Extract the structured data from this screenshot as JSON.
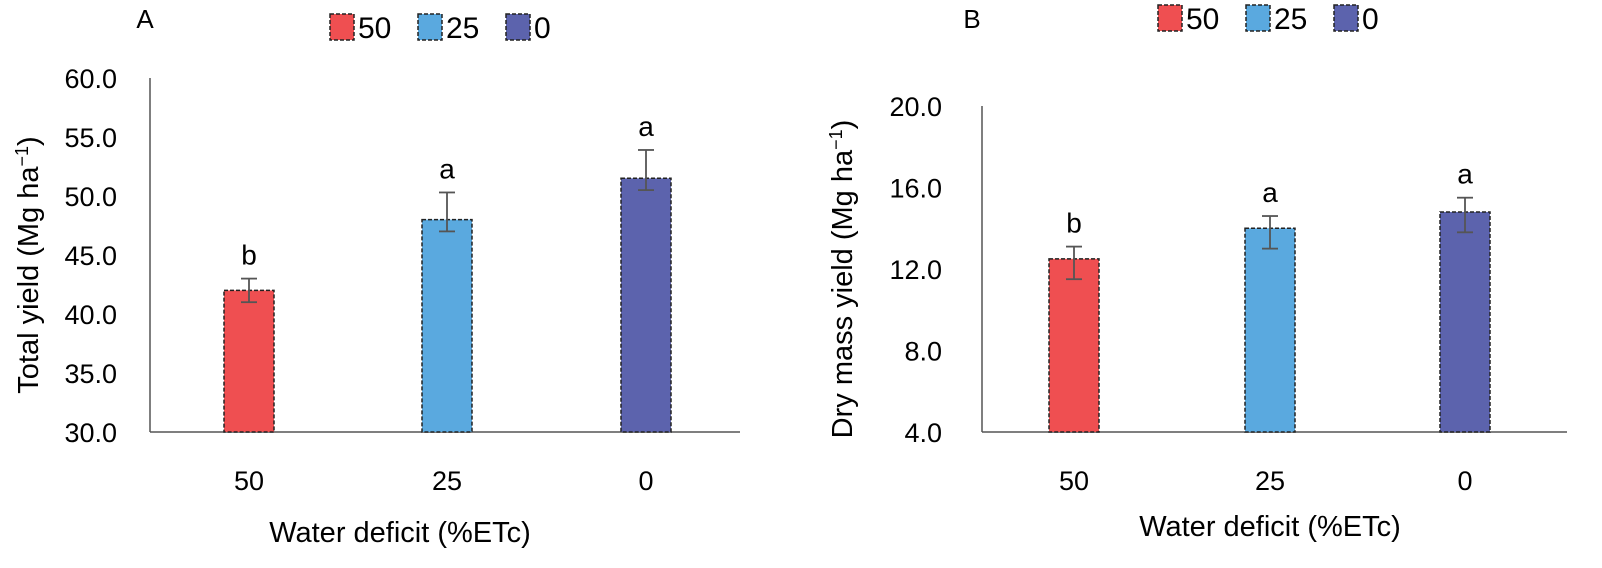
{
  "chart_data": [
    {
      "type": "bar",
      "panel_label": "A",
      "categories": [
        "50",
        "25",
        "0"
      ],
      "values": [
        42.0,
        48.0,
        51.5
      ],
      "errors": [
        1.0,
        2.3,
        2.4
      ],
      "error_lower": [
        1.0,
        1.0,
        1.0
      ],
      "sig_letters": [
        "b",
        "a",
        "a"
      ],
      "colors": [
        "#ef4f51",
        "#5aa9df",
        "#5c63ad"
      ],
      "legend": [
        {
          "label": "50",
          "color": "#ef4f51"
        },
        {
          "label": "25",
          "color": "#5aa9df"
        },
        {
          "label": "0",
          "color": "#5c63ad"
        }
      ],
      "ylabel": "Total yield (Mg ha",
      "ylabel_sup": "−1",
      "ylabel_close": ")",
      "xlabel": "Water deficit (%ETc)",
      "ylim": [
        30.0,
        60.0
      ],
      "yticks": [
        30.0,
        35.0,
        40.0,
        45.0,
        50.0,
        55.0,
        60.0
      ],
      "ytick_labels": [
        "30.0",
        "35.0",
        "40.0",
        "45.0",
        "50.0",
        "55.0",
        "60.0"
      ]
    },
    {
      "type": "bar",
      "panel_label": "B",
      "categories": [
        "50",
        "25",
        "0"
      ],
      "values": [
        12.5,
        14.0,
        14.8
      ],
      "errors": [
        0.6,
        0.6,
        0.7
      ],
      "error_lower": [
        1.0,
        1.0,
        1.0
      ],
      "sig_letters": [
        "b",
        "a",
        "a"
      ],
      "colors": [
        "#ef4f51",
        "#5aa9df",
        "#5c63ad"
      ],
      "legend": [
        {
          "label": "50",
          "color": "#ef4f51"
        },
        {
          "label": "25",
          "color": "#5aa9df"
        },
        {
          "label": "0",
          "color": "#5c63ad"
        }
      ],
      "ylabel": "Dry mass yield (Mg ha",
      "ylabel_sup": "−1",
      "ylabel_close": ")",
      "xlabel": "Water deficit (%ETc)",
      "ylim": [
        4.0,
        20.0
      ],
      "yticks": [
        4.0,
        8.0,
        12.0,
        16.0,
        20.0
      ],
      "ytick_labels": [
        "4.0",
        "8.0",
        "12.0",
        "16.0",
        "20.0"
      ]
    }
  ]
}
